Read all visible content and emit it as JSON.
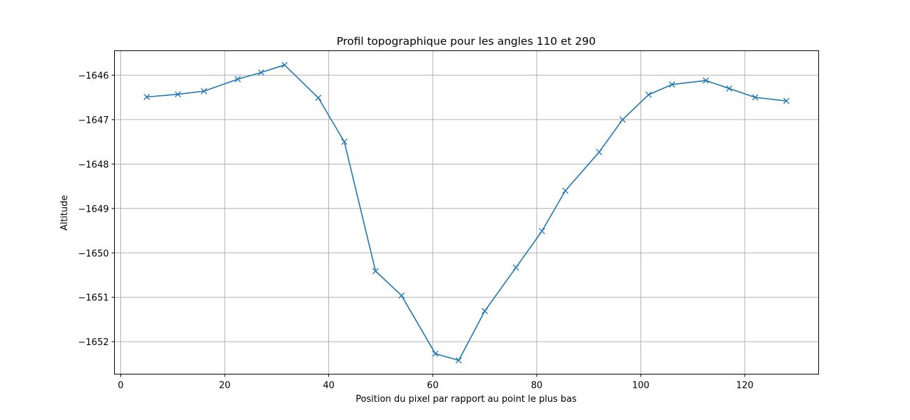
{
  "chart_data": {
    "type": "line",
    "title": "Profil topographique pour les angles 110 et 290",
    "xlabel": "Position du pixel par rapport au point le plus bas",
    "ylabel": "Altitude",
    "xlim": [
      -1.2,
      134.2
    ],
    "ylim": [
      -1652.73,
      -1645.45
    ],
    "xticks": [
      0,
      20,
      40,
      60,
      80,
      100,
      120
    ],
    "yticks": [
      -1652,
      -1651,
      -1650,
      -1649,
      -1648,
      -1647,
      -1646
    ],
    "grid": true,
    "marker": "x",
    "series": [
      {
        "color": "#1f77b4",
        "x": [
          5,
          11,
          16,
          22.5,
          27,
          31.5,
          38,
          43,
          49,
          54,
          60.5,
          65,
          70,
          76,
          81,
          85.5,
          92,
          96.5,
          101.5,
          106,
          112.5,
          117,
          122,
          128
        ],
        "y": [
          -1646.49,
          -1646.43,
          -1646.36,
          -1646.09,
          -1645.94,
          -1645.77,
          -1646.51,
          -1647.5,
          -1650.41,
          -1650.96,
          -1652.27,
          -1652.42,
          -1651.31,
          -1650.33,
          -1649.51,
          -1648.6,
          -1647.73,
          -1647.0,
          -1646.44,
          -1646.21,
          -1646.12,
          -1646.3,
          -1646.5,
          -1646.58
        ]
      }
    ]
  }
}
